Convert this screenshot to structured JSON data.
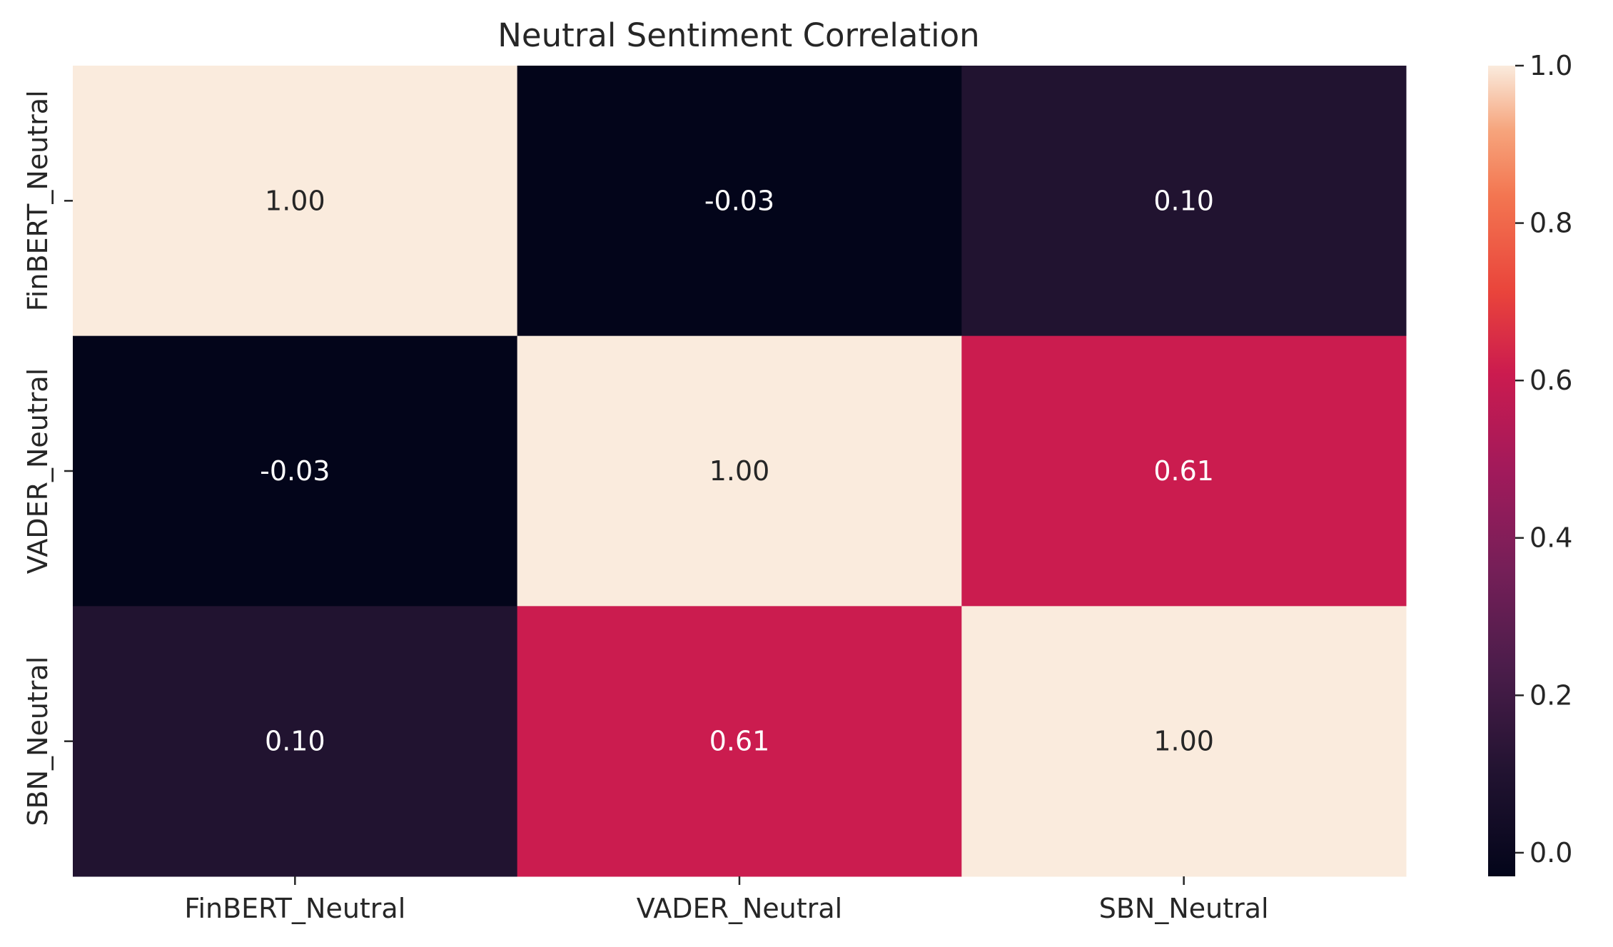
{
  "chart_data": {
    "type": "heatmap",
    "title": "Neutral Sentiment Correlation",
    "x_categories": [
      "FinBERT_Neutral",
      "VADER_Neutral",
      "SBN_Neutral"
    ],
    "y_categories": [
      "FinBERT_Neutral",
      "VADER_Neutral",
      "SBN_Neutral"
    ],
    "values": [
      [
        1.0,
        -0.03,
        0.1
      ],
      [
        -0.03,
        1.0,
        0.61
      ],
      [
        0.1,
        0.61,
        1.0
      ]
    ],
    "cell_labels": [
      [
        "1.00",
        "-0.03",
        "0.10"
      ],
      [
        "-0.03",
        "1.00",
        "0.61"
      ],
      [
        "0.10",
        "0.61",
        "1.00"
      ]
    ],
    "colormap": "rocket",
    "colorbar": {
      "range": [
        -0.03,
        1.0
      ],
      "ticks": [
        0.0,
        0.2,
        0.4,
        0.6,
        0.8,
        1.0
      ],
      "tick_labels": [
        "0.0",
        "0.2",
        "0.4",
        "0.6",
        "0.8",
        "1.0"
      ],
      "placement": "right"
    },
    "grid": false
  }
}
